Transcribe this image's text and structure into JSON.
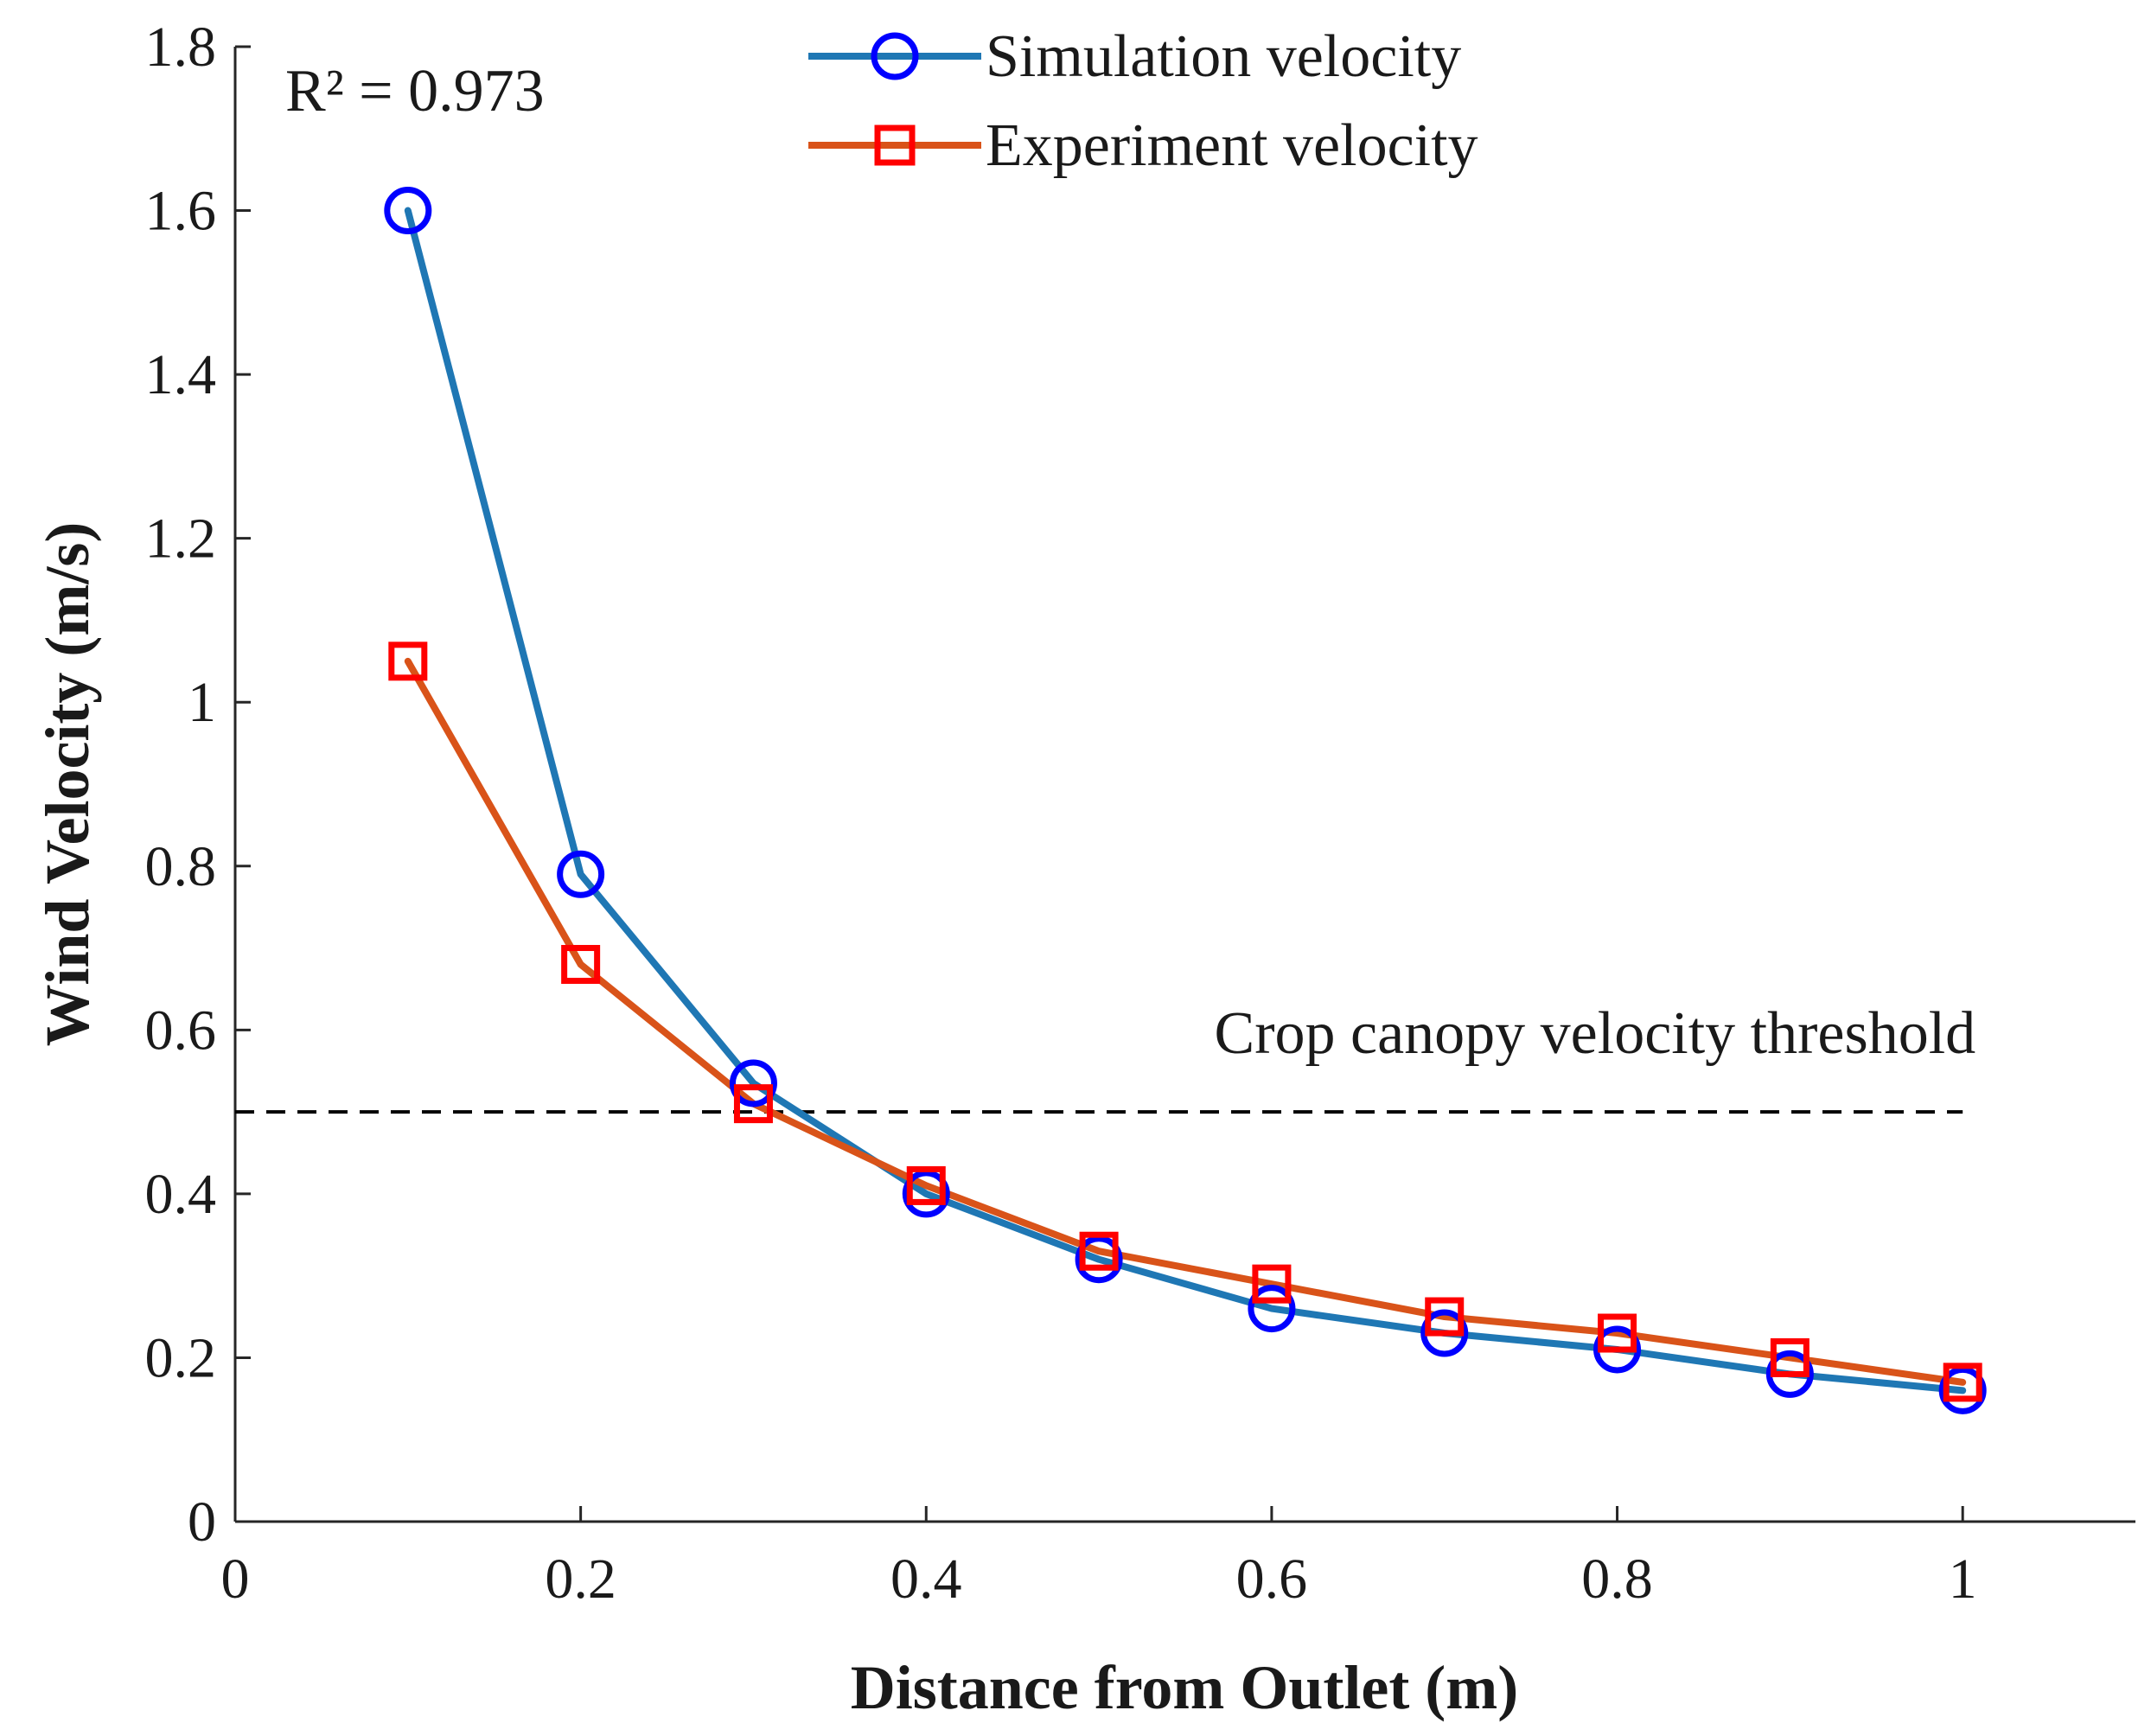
{
  "chart_data": {
    "type": "line",
    "title": "",
    "xlabel": "Distance from Outlet (m)",
    "ylabel": "Wind Velocity (m/s)",
    "xlim": [
      0,
      1.1
    ],
    "ylim": [
      0,
      1.8
    ],
    "xticks": [
      0,
      0.2,
      0.4,
      0.6,
      0.8,
      1
    ],
    "xtick_labels": [
      "0",
      "0.2",
      "0.4",
      "0.6",
      "0.8",
      "1"
    ],
    "yticks": [
      0,
      0.2,
      0.4,
      0.6,
      0.8,
      1,
      1.2,
      1.4,
      1.6,
      1.8
    ],
    "ytick_labels": [
      "0",
      "0.2",
      "0.4",
      "0.6",
      "0.8",
      "1",
      "1.2",
      "1.4",
      "1.6",
      "1.8"
    ],
    "grid": false,
    "legend_position": "top-center",
    "x": [
      0.1,
      0.2,
      0.3,
      0.4,
      0.5,
      0.6,
      0.7,
      0.8,
      0.9,
      1.0
    ],
    "series": [
      {
        "name": "Simulation velocity",
        "values": [
          1.6,
          0.79,
          0.535,
          0.4,
          0.32,
          0.26,
          0.23,
          0.21,
          0.18,
          0.16
        ],
        "line_color": "#1f77b4",
        "marker": "circle",
        "marker_color": "#0000ff"
      },
      {
        "name": "Experiment velocity",
        "values": [
          1.05,
          0.68,
          0.51,
          0.41,
          0.33,
          0.29,
          0.25,
          0.23,
          0.2,
          0.17
        ],
        "line_color": "#d95319",
        "marker": "square",
        "marker_color": "#ff0000"
      }
    ],
    "threshold": {
      "value": 0.5,
      "x_range": [
        0,
        1.0
      ],
      "label": "Crop canopy velocity threshold",
      "color": "#000000",
      "style": "dashed"
    },
    "annotations": [
      {
        "text": "R² = 0.973"
      }
    ]
  }
}
